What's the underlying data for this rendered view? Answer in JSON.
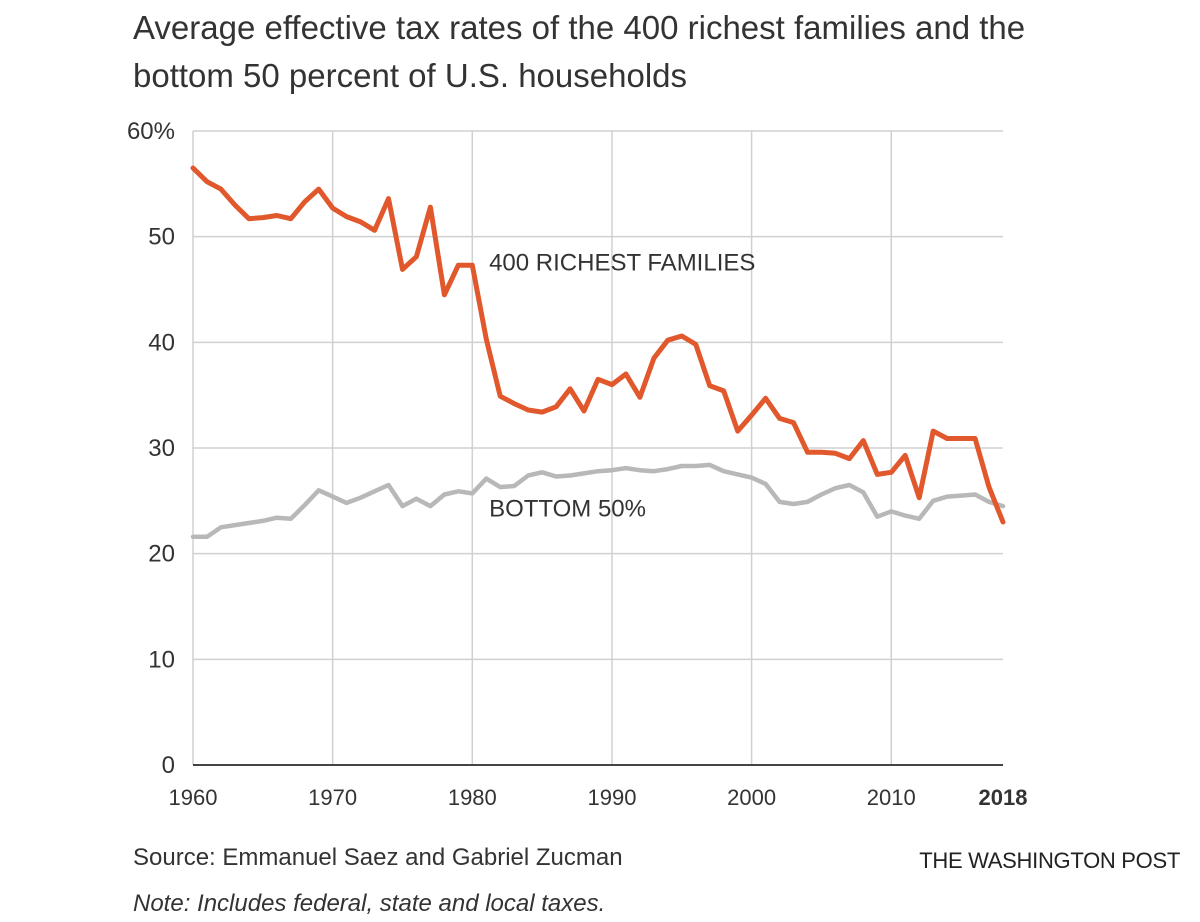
{
  "header": {
    "title": "Average effective tax rates of the 400 richest families and the bottom 50 percent of U.S. households"
  },
  "footer": {
    "source": "Source: Emmanuel Saez and Gabriel Zucman",
    "brand": "THE WASHINGTON POST",
    "note": "Note: Includes federal, state and local taxes."
  },
  "colors": {
    "richest": "#e1582c",
    "bottom": "#b8b8b8",
    "grid": "#d0d0d0",
    "axis": "#444444"
  },
  "chart_data": {
    "type": "line",
    "title": "Average effective tax rates of the 400 richest families and the bottom 50 percent of U.S. households",
    "xlabel": "",
    "ylabel": "",
    "xlim": [
      1960,
      2018
    ],
    "ylim": [
      0,
      60
    ],
    "grid": true,
    "y_ticks": [
      0,
      10,
      20,
      30,
      40,
      50,
      60
    ],
    "y_tick_labels": [
      "0",
      "10",
      "20",
      "30",
      "40",
      "50",
      "60%"
    ],
    "x_ticks": [
      1960,
      1970,
      1980,
      1990,
      2000,
      2010,
      2018
    ],
    "x_tick_labels": [
      "1960",
      "1970",
      "1980",
      "1990",
      "2000",
      "2010",
      "2018"
    ],
    "x_tick_bold": [
      false,
      false,
      false,
      false,
      false,
      false,
      true
    ],
    "series": [
      {
        "name": "400 RICHEST FAMILIES",
        "color": "#e1582c",
        "x": [
          1960,
          1961,
          1962,
          1963,
          1964,
          1965,
          1966,
          1967,
          1968,
          1969,
          1970,
          1971,
          1972,
          1973,
          1974,
          1975,
          1976,
          1977,
          1978,
          1979,
          1980,
          1981,
          1982,
          1983,
          1984,
          1985,
          1986,
          1987,
          1988,
          1989,
          1990,
          1991,
          1992,
          1993,
          1994,
          1995,
          1996,
          1997,
          1998,
          1999,
          2000,
          2001,
          2002,
          2003,
          2004,
          2005,
          2006,
          2007,
          2008,
          2009,
          2010,
          2011,
          2012,
          2013,
          2014,
          2015,
          2016,
          2017,
          2018
        ],
        "values": [
          56.5,
          55.2,
          54.5,
          53,
          51.7,
          51.8,
          52,
          51.7,
          53.3,
          54.5,
          52.7,
          51.9,
          51.4,
          50.6,
          53.6,
          46.9,
          48.1,
          52.8,
          44.5,
          47.3,
          47.3,
          40.3,
          34.9,
          34.2,
          33.6,
          33.4,
          33.9,
          35.6,
          33.5,
          36.5,
          36,
          37,
          34.8,
          38.5,
          40.2,
          40.6,
          39.8,
          35.9,
          35.4,
          31.6,
          33.1,
          34.7,
          32.8,
          32.4,
          29.6,
          29.6,
          29.5,
          29,
          30.7,
          27.5,
          27.7,
          29.3,
          25.3,
          31.6,
          30.9,
          30.9,
          30.9,
          26.3,
          23
        ]
      },
      {
        "name": "BOTTOM 50%",
        "color": "#b8b8b8",
        "x": [
          1960,
          1961,
          1962,
          1963,
          1964,
          1965,
          1966,
          1967,
          1968,
          1969,
          1970,
          1971,
          1972,
          1973,
          1974,
          1975,
          1976,
          1977,
          1978,
          1979,
          1980,
          1981,
          1982,
          1983,
          1984,
          1985,
          1986,
          1987,
          1988,
          1989,
          1990,
          1991,
          1992,
          1993,
          1994,
          1995,
          1996,
          1997,
          1998,
          1999,
          2000,
          2001,
          2002,
          2003,
          2004,
          2005,
          2006,
          2007,
          2008,
          2009,
          2010,
          2011,
          2012,
          2013,
          2014,
          2015,
          2016,
          2017,
          2018
        ],
        "values": [
          21.6,
          21.6,
          22.5,
          22.7,
          22.9,
          23.1,
          23.4,
          23.3,
          24.6,
          26,
          25.4,
          24.8,
          25.3,
          25.9,
          26.5,
          24.5,
          25.2,
          24.5,
          25.6,
          25.9,
          25.7,
          27.1,
          26.3,
          26.4,
          27.4,
          27.7,
          27.3,
          27.4,
          27.6,
          27.8,
          27.9,
          28.1,
          27.9,
          27.8,
          28,
          28.3,
          28.3,
          28.4,
          27.8,
          27.5,
          27.2,
          26.6,
          24.9,
          24.7,
          24.9,
          25.6,
          26.2,
          26.5,
          25.8,
          23.5,
          24,
          23.6,
          23.3,
          25,
          25.4,
          25.5,
          25.6,
          24.9,
          24.5
        ]
      }
    ],
    "annotations": [
      {
        "text": "400 RICHEST FAMILIES",
        "series": "400 RICHEST FAMILIES",
        "anchor_x": 1981.2,
        "anchor_y": 46.8
      },
      {
        "text": "BOTTOM 50%",
        "series": "BOTTOM 50%",
        "anchor_x": 1981.2,
        "anchor_y": 23.5
      }
    ]
  }
}
